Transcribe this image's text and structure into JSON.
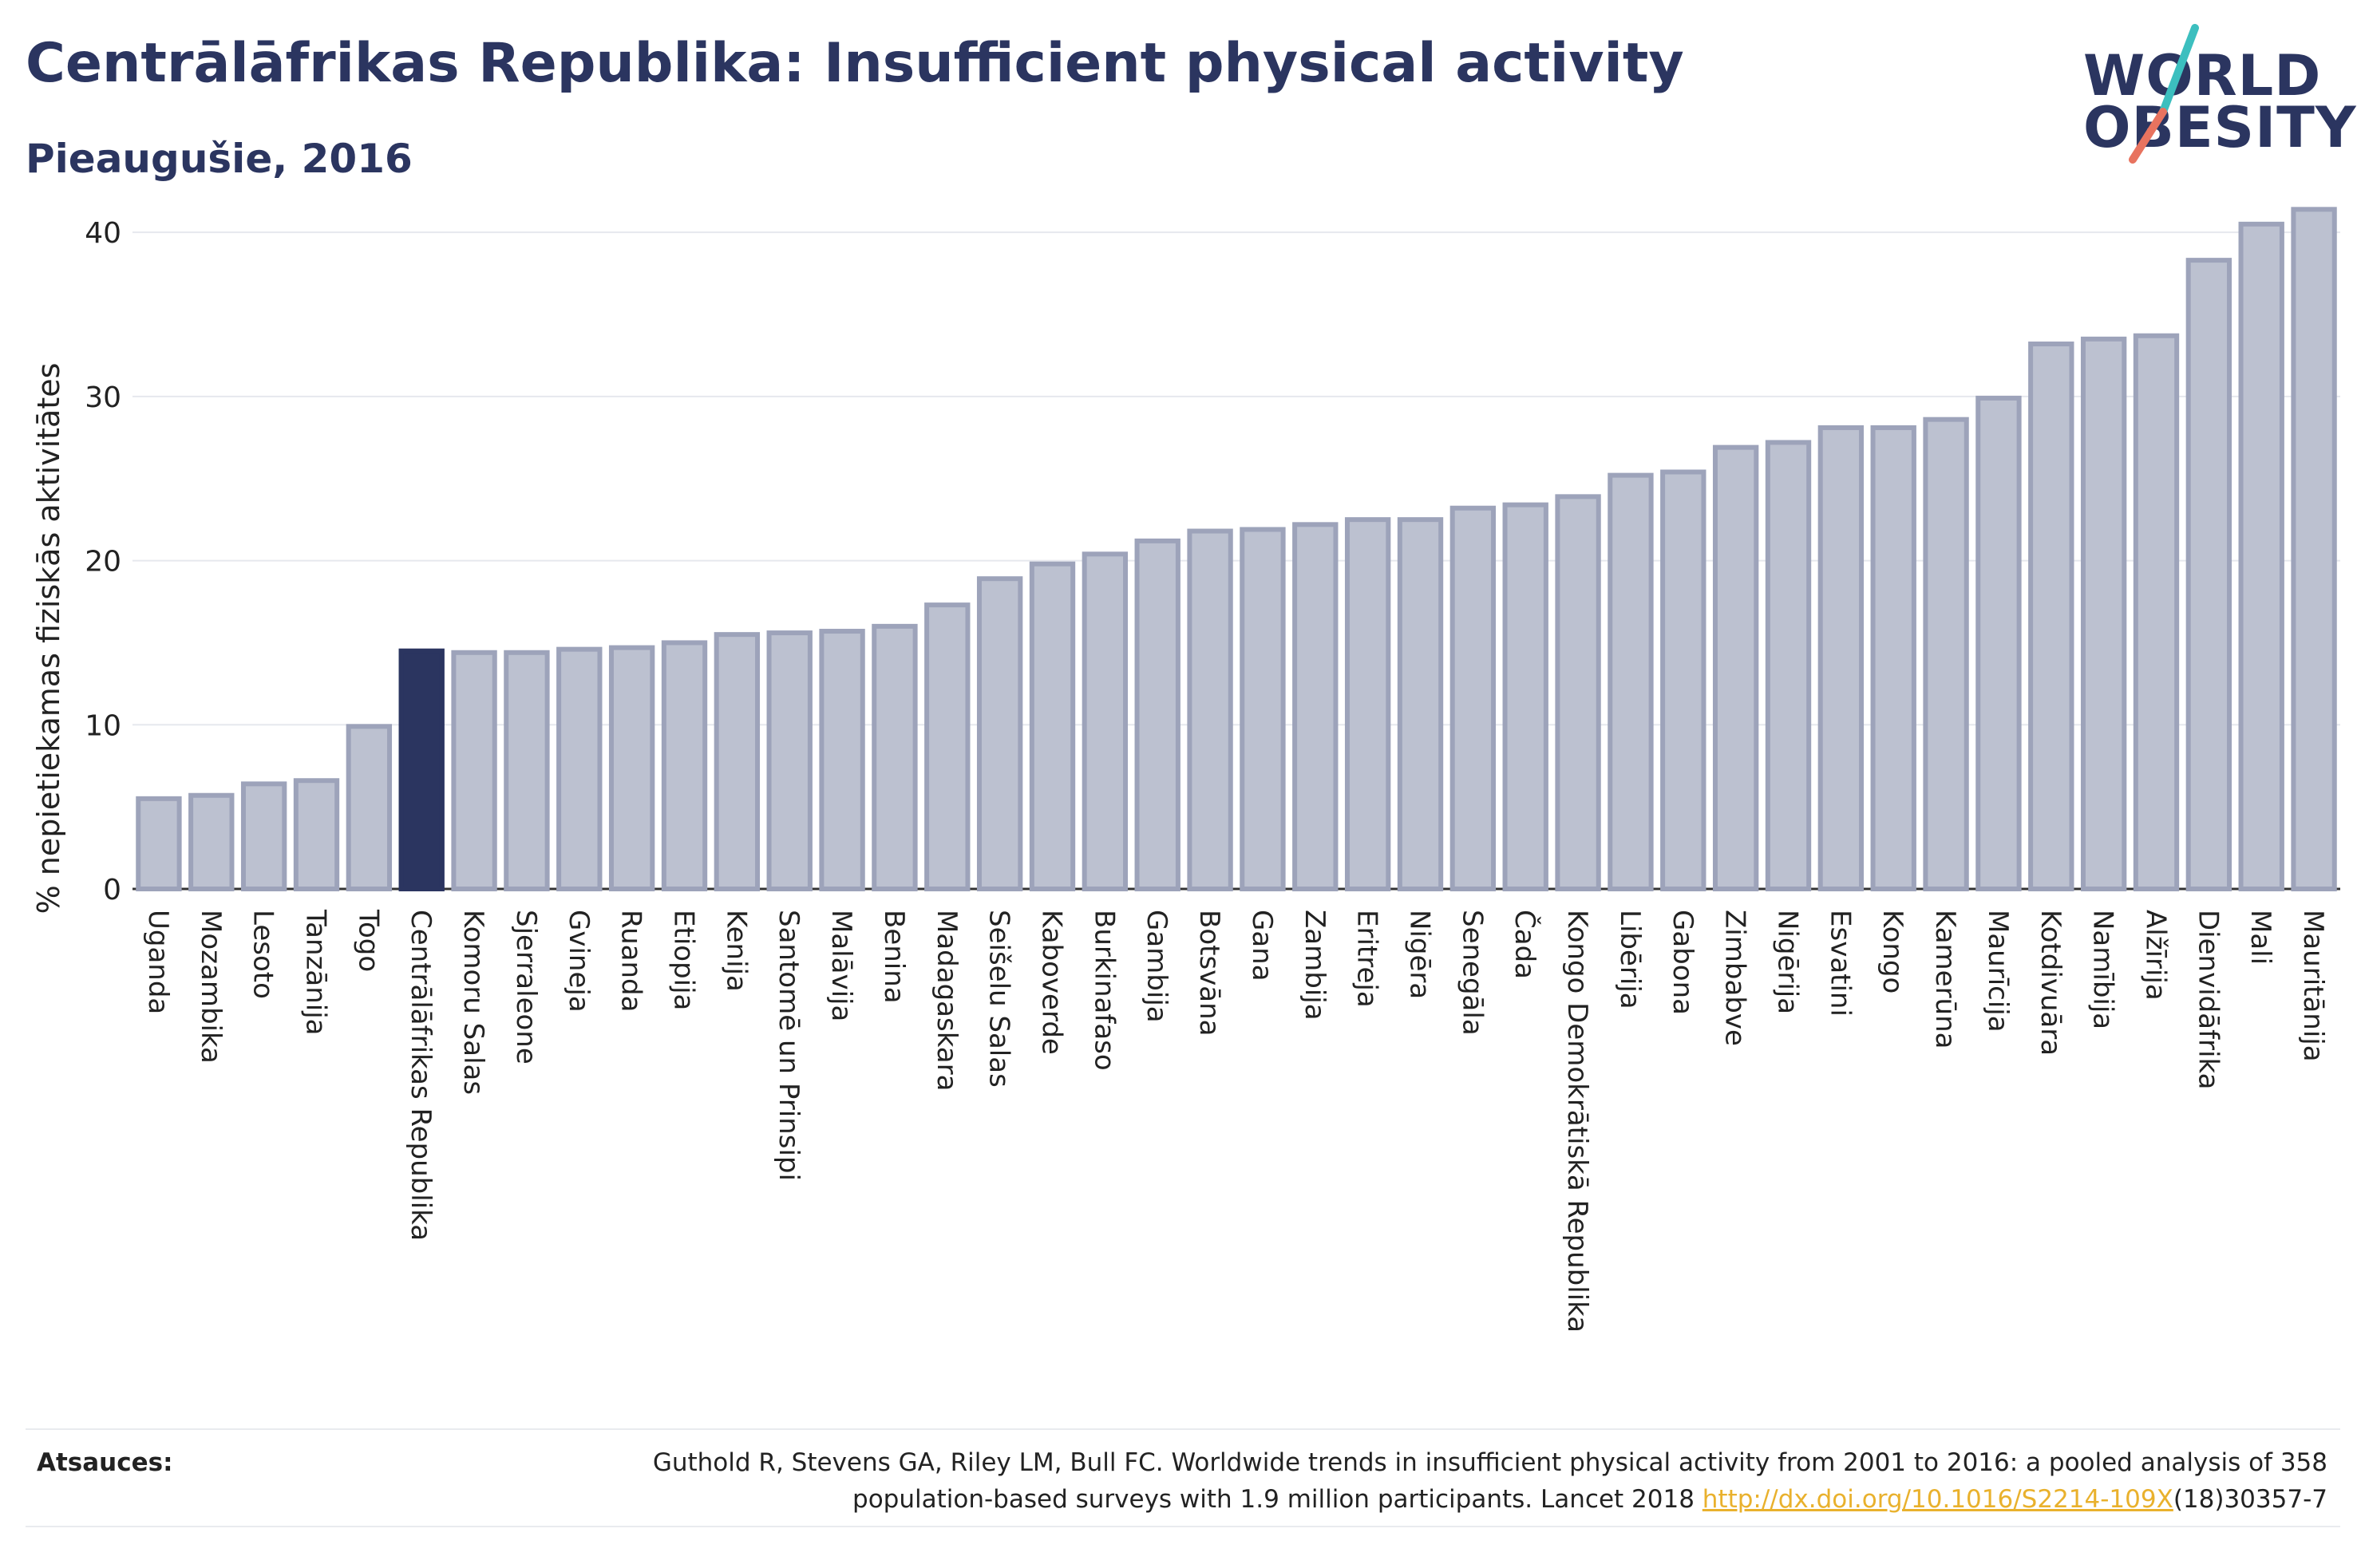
{
  "header": {
    "title": "Centrālāfrikas Republika: Insufficient physical activity",
    "subtitle": "Pieaugušie, 2016"
  },
  "logo": {
    "line1": "WORLD",
    "line2": "OBESITY",
    "accent_teal": "#3cbfbf",
    "accent_coral": "#e8735f"
  },
  "footer": {
    "source_label": "Atsauces:",
    "citation_line1": "Guthold R, Stevens GA, Riley LM, Bull FC. Worldwide trends in insufficient physical activity from 2001 to 2016: a pooled analysis of 358",
    "citation_line2_pre": "population-based surveys with 1.9 million participants. Lancet 2018 ",
    "citation_link": "http://dx.doi.org/10.1016/S2214-109X",
    "citation_line2_post": "(18)30357-7"
  },
  "chart_data": {
    "type": "bar",
    "ylabel": "% nepietiekamas fiziskās aktivitātes",
    "ylim": [
      0,
      42
    ],
    "yticks": [
      0,
      10,
      20,
      30,
      40
    ],
    "grid": true,
    "highlight": "Centrālāfrikas Republika",
    "colors": {
      "bar": "#bcc1d0",
      "bar_edge": "#9da3ba",
      "highlight": "#2b3560"
    },
    "categories": [
      "Uganda",
      "Mozambika",
      "Lesoto",
      "Tanzānija",
      "Togo",
      "Centrālāfrikas Republika",
      "Komoru Salas",
      "Sjerraleone",
      "Gvineja",
      "Ruanda",
      "Etiopija",
      "Kenija",
      "Santomē un Prinsipi",
      "Malāvija",
      "Benina",
      "Madagaskara",
      "Seišelu Salas",
      "Kaboverde",
      "Burkinafaso",
      "Gambija",
      "Botsvāna",
      "Gana",
      "Zambija",
      "Eritreja",
      "Nigēra",
      "Senegāla",
      "Čada",
      "Kongo Demokrātiskā Republika",
      "Libērija",
      "Gabona",
      "Zimbabve",
      "Nigērija",
      "Esvatini",
      "Kongo",
      "Kamerūna",
      "Maurīcija",
      "Kotdivuāra",
      "Namībija",
      "Alžīrija",
      "Dienvidāfrika",
      "Mali",
      "Mauritānija"
    ],
    "values": [
      5.5,
      5.7,
      6.4,
      6.6,
      9.9,
      14.5,
      14.4,
      14.4,
      14.6,
      14.7,
      15.0,
      15.5,
      15.6,
      15.7,
      16.0,
      17.3,
      18.9,
      19.8,
      20.4,
      21.2,
      21.8,
      21.9,
      22.2,
      22.5,
      22.5,
      23.2,
      23.4,
      23.9,
      25.2,
      25.4,
      26.9,
      27.2,
      28.1,
      28.1,
      28.6,
      29.9,
      33.2,
      33.5,
      33.7,
      38.3,
      40.5,
      41.4
    ]
  }
}
